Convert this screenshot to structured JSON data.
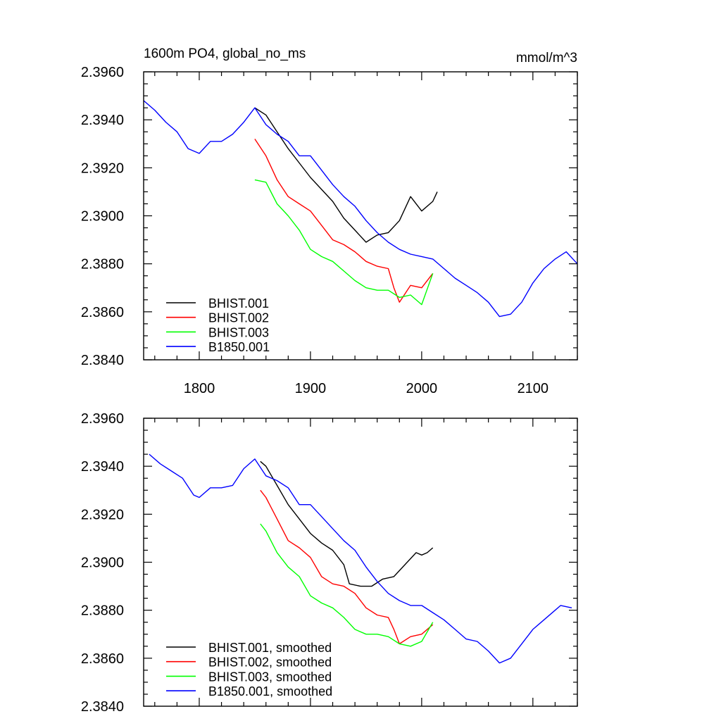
{
  "chart_data": [
    {
      "type": "line",
      "title": "1600m PO4, global_no_ms",
      "units": "mmol/m^3",
      "xlim": [
        1750,
        2140
      ],
      "ylim": [
        2.384,
        2.396
      ],
      "xticks": [
        1800,
        1900,
        2000,
        2100
      ],
      "xtick_labels": [
        "1800",
        "1900",
        "2000",
        "2100"
      ],
      "yticks": [
        2.384,
        2.386,
        2.388,
        2.39,
        2.392,
        2.394,
        2.396
      ],
      "ytick_labels": [
        "2.3840",
        "2.3860",
        "2.3880",
        "2.3900",
        "2.3920",
        "2.3940",
        "2.3960"
      ],
      "grid": false,
      "legend_position": "bottom-left",
      "series": [
        {
          "name": "BHIST.001",
          "color": "#000000",
          "x": [
            1850,
            1860,
            1870,
            1880,
            1890,
            1900,
            1910,
            1920,
            1930,
            1940,
            1950,
            1960,
            1970,
            1980,
            1990,
            2000,
            2010,
            2014
          ],
          "y": [
            2.3945,
            2.3942,
            2.3935,
            2.3928,
            2.3922,
            2.3916,
            2.3911,
            2.3906,
            2.3899,
            2.3894,
            2.3889,
            2.3892,
            2.3893,
            2.3898,
            2.3908,
            2.3902,
            2.3906,
            2.391
          ]
        },
        {
          "name": "BHIST.002",
          "color": "#ff0000",
          "x": [
            1850,
            1860,
            1870,
            1880,
            1890,
            1900,
            1910,
            1920,
            1930,
            1940,
            1950,
            1960,
            1970,
            1975,
            1980,
            1990,
            2000,
            2010
          ],
          "y": [
            2.3932,
            2.3925,
            2.3915,
            2.3908,
            2.3905,
            2.3902,
            2.3896,
            2.389,
            2.3888,
            2.3885,
            2.3881,
            2.3879,
            2.3878,
            2.387,
            2.3864,
            2.3871,
            2.387,
            2.3876
          ]
        },
        {
          "name": "BHIST.003",
          "color": "#00ff00",
          "x": [
            1850,
            1860,
            1870,
            1880,
            1890,
            1900,
            1910,
            1920,
            1930,
            1940,
            1950,
            1960,
            1970,
            1980,
            1990,
            2000,
            2010
          ],
          "y": [
            2.3915,
            2.3914,
            2.3905,
            2.39,
            2.3894,
            2.3886,
            2.3883,
            2.3881,
            2.3877,
            2.3873,
            2.387,
            2.3869,
            2.3869,
            2.3866,
            2.3867,
            2.3863,
            2.3876
          ]
        },
        {
          "name": "B1850.001",
          "color": "#0000ff",
          "x": [
            1750,
            1760,
            1770,
            1780,
            1790,
            1800,
            1810,
            1820,
            1830,
            1840,
            1850,
            1860,
            1870,
            1880,
            1890,
            1900,
            1910,
            1920,
            1930,
            1940,
            1950,
            1960,
            1970,
            1980,
            1990,
            2000,
            2010,
            2020,
            2030,
            2040,
            2050,
            2060,
            2070,
            2080,
            2090,
            2100,
            2110,
            2120,
            2130,
            2140
          ],
          "y": [
            2.3948,
            2.3944,
            2.3939,
            2.3935,
            2.3928,
            2.3926,
            2.3931,
            2.3931,
            2.3934,
            2.3939,
            2.3945,
            2.3938,
            2.3934,
            2.3931,
            2.3925,
            2.3925,
            2.3919,
            2.3913,
            2.3908,
            2.3904,
            2.3898,
            2.3893,
            2.3889,
            2.3886,
            2.3884,
            2.3883,
            2.3882,
            2.3878,
            2.3874,
            2.3871,
            2.3868,
            2.3864,
            2.3858,
            2.3859,
            2.3864,
            2.3872,
            2.3878,
            2.3882,
            2.3885,
            2.388
          ]
        }
      ]
    },
    {
      "type": "line",
      "xlim": [
        1750,
        2140
      ],
      "ylim": [
        2.384,
        2.396
      ],
      "xticks": [
        1800,
        1900,
        2000,
        2100
      ],
      "yticks": [
        2.384,
        2.386,
        2.388,
        2.39,
        2.392,
        2.394,
        2.396
      ],
      "ytick_labels": [
        "2.3840",
        "2.3860",
        "2.3880",
        "2.3900",
        "2.3920",
        "2.3940",
        "2.3960"
      ],
      "grid": false,
      "legend_position": "bottom-left",
      "series": [
        {
          "name": "BHIST.001, smoothed",
          "color": "#000000",
          "x": [
            1855,
            1860,
            1870,
            1880,
            1890,
            1900,
            1910,
            1920,
            1930,
            1935,
            1945,
            1955,
            1965,
            1975,
            1985,
            1995,
            2000,
            2005,
            2010
          ],
          "y": [
            2.3942,
            2.394,
            2.3932,
            2.3924,
            2.3918,
            2.3912,
            2.3908,
            2.3905,
            2.3899,
            2.3891,
            2.389,
            2.389,
            2.3893,
            2.3894,
            2.3899,
            2.3904,
            2.3903,
            2.3904,
            2.3906
          ]
        },
        {
          "name": "BHIST.002, smoothed",
          "color": "#ff0000",
          "x": [
            1855,
            1860,
            1870,
            1880,
            1890,
            1900,
            1910,
            1920,
            1930,
            1940,
            1950,
            1960,
            1970,
            1975,
            1980,
            1990,
            2000,
            2010
          ],
          "y": [
            2.393,
            2.3927,
            2.3918,
            2.3909,
            2.3906,
            2.3902,
            2.3894,
            2.3891,
            2.389,
            2.3887,
            2.3881,
            2.3878,
            2.3877,
            2.3872,
            2.3866,
            2.3869,
            2.387,
            2.3874
          ]
        },
        {
          "name": "BHIST.003, smoothed",
          "color": "#00ff00",
          "x": [
            1855,
            1860,
            1870,
            1880,
            1890,
            1900,
            1910,
            1920,
            1930,
            1940,
            1950,
            1960,
            1970,
            1980,
            1990,
            2000,
            2010
          ],
          "y": [
            2.3916,
            2.3913,
            2.3904,
            2.3898,
            2.3894,
            2.3886,
            2.3883,
            2.3881,
            2.3877,
            2.3872,
            2.387,
            2.387,
            2.3869,
            2.3866,
            2.3865,
            2.3867,
            2.3875
          ]
        },
        {
          "name": "B1850.001, smoothed",
          "color": "#0000ff",
          "x": [
            1755,
            1765,
            1775,
            1785,
            1795,
            1800,
            1810,
            1820,
            1830,
            1840,
            1850,
            1860,
            1870,
            1880,
            1890,
            1900,
            1910,
            1920,
            1930,
            1940,
            1950,
            1960,
            1970,
            1980,
            1990,
            2000,
            2010,
            2020,
            2030,
            2040,
            2050,
            2060,
            2070,
            2080,
            2090,
            2100,
            2110,
            2120,
            2125,
            2135
          ],
          "y": [
            2.3945,
            2.3941,
            2.3938,
            2.3935,
            2.3928,
            2.3927,
            2.3931,
            2.3931,
            2.3932,
            2.3939,
            2.3943,
            2.3936,
            2.3934,
            2.3931,
            2.3924,
            2.3924,
            2.3919,
            2.3914,
            2.3909,
            2.3905,
            2.3898,
            2.3892,
            2.3887,
            2.3884,
            2.3882,
            2.3882,
            2.3879,
            2.3876,
            2.3872,
            2.3868,
            2.3867,
            2.3863,
            2.3858,
            2.386,
            2.3866,
            2.3872,
            2.3876,
            2.388,
            2.3882,
            2.3881
          ]
        }
      ]
    }
  ]
}
